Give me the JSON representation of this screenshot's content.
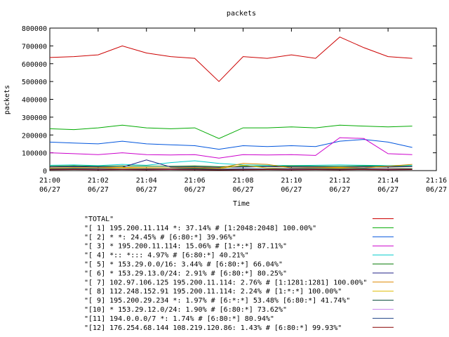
{
  "chart_data": {
    "type": "line",
    "title": "packets",
    "xlabel": "Time",
    "ylabel": "packets",
    "ylim": [
      0,
      800000
    ],
    "yticks": [
      0,
      100000,
      200000,
      300000,
      400000,
      500000,
      600000,
      700000,
      800000
    ],
    "xticks": [
      {
        "time": "21:00",
        "date": "06/27"
      },
      {
        "time": "21:02",
        "date": "06/27"
      },
      {
        "time": "21:04",
        "date": "06/27"
      },
      {
        "time": "21:06",
        "date": "06/27"
      },
      {
        "time": "21:08",
        "date": "06/27"
      },
      {
        "time": "21:10",
        "date": "06/27"
      },
      {
        "time": "21:12",
        "date": "06/27"
      },
      {
        "time": "21:14",
        "date": "06/27"
      },
      {
        "time": "21:16",
        "date": "06/27"
      }
    ],
    "xlim": [
      "21:00",
      "21:16"
    ],
    "grid": false,
    "legend_position": "bottom",
    "x": [
      "21:00",
      "21:01",
      "21:02",
      "21:03",
      "21:04",
      "21:05",
      "21:06",
      "21:07",
      "21:08",
      "21:09",
      "21:10",
      "21:11",
      "21:12",
      "21:13",
      "21:14",
      "21:15"
    ],
    "series": [
      {
        "name": "\"TOTAL\"",
        "color": "#cc0000",
        "values": [
          635000,
          640000,
          650000,
          700000,
          660000,
          640000,
          630000,
          500000,
          640000,
          630000,
          650000,
          630000,
          750000,
          690000,
          640000,
          630000
        ]
      },
      {
        "name": "\"[ 1] 195.200.11.114 *: 37.14% # [1:2048:2048] 100.00%\"",
        "color": "#00aa00",
        "values": [
          235000,
          230000,
          240000,
          255000,
          240000,
          235000,
          240000,
          180000,
          240000,
          240000,
          245000,
          240000,
          255000,
          250000,
          245000,
          250000
        ]
      },
      {
        "name": "\"[ 2] * *: 24.45% # [6:80:*] 39.96%\"",
        "color": "#0055dd",
        "values": [
          160000,
          155000,
          150000,
          165000,
          150000,
          145000,
          140000,
          120000,
          140000,
          135000,
          140000,
          135000,
          165000,
          175000,
          160000,
          130000
        ]
      },
      {
        "name": "\"[ 3] * 195.200.11.114: 15.06% # [1:*:*] 87.11%\"",
        "color": "#cc00cc",
        "values": [
          100000,
          95000,
          90000,
          100000,
          90000,
          88000,
          90000,
          70000,
          90000,
          88000,
          90000,
          85000,
          185000,
          180000,
          95000,
          90000
        ]
      },
      {
        "name": "\"[ 4] *:: *::: 4.97% # [6:80:*] 40.21%\"",
        "color": "#00cccc",
        "values": [
          30000,
          32000,
          28000,
          35000,
          30000,
          45000,
          55000,
          40000,
          32000,
          30000,
          28000,
          30000,
          32000,
          30000,
          28000,
          30000
        ]
      },
      {
        "name": "\"[ 5] * 153.29.0.0/16: 3.44% # [6:80:*] 66.04%\"",
        "color": "#007700",
        "values": [
          25000,
          27000,
          24000,
          26000,
          25000,
          24000,
          26000,
          22000,
          25000,
          24000,
          26000,
          25000,
          24000,
          26000,
          25000,
          24000
        ]
      },
      {
        "name": "\"[ 6] * 153.29.13.0/24: 2.91% # [6:80:*] 80.25%\"",
        "color": "#222288",
        "values": [
          20000,
          22000,
          21000,
          19000,
          60000,
          20000,
          21000,
          18000,
          20000,
          22000,
          21000,
          20000,
          19000,
          21000,
          20000,
          22000
        ]
      },
      {
        "name": "\"[ 7] 102.97.106.125 195.200.11.114: 2.76% # [1:1281:1281] 100.00%\"",
        "color": "#dd8800",
        "values": [
          15000,
          17000,
          16000,
          18000,
          16000,
          15000,
          17000,
          14000,
          40000,
          35000,
          15000,
          16000,
          18000,
          15000,
          25000,
          35000
        ]
      },
      {
        "name": "\"[ 8] 112.248.152.91 195.200.11.114: 2.24% # [1:*:*] 100.00%\"",
        "color": "#ddbb00",
        "values": [
          12000,
          14000,
          13000,
          15000,
          12000,
          13000,
          14000,
          11000,
          30000,
          15000,
          12000,
          13000,
          14000,
          12000,
          13000,
          12000
        ]
      },
      {
        "name": "\"[ 9] 195.200.29.234 *: 1.97% # [6:*:*] 53.48% [6:80:*] 41.74%\"",
        "color": "#004433",
        "values": [
          10000,
          12000,
          11000,
          9000,
          10000,
          11000,
          12000,
          9000,
          11000,
          10000,
          12000,
          11000,
          10000,
          12000,
          11000,
          10000
        ]
      },
      {
        "name": "\"[10] * 153.29.12.0/24: 1.90% # [6:80:*] 73.62%\"",
        "color": "#cc88ee",
        "values": [
          8000,
          9000,
          10000,
          8000,
          9000,
          10000,
          8000,
          7000,
          9000,
          8000,
          10000,
          9000,
          8000,
          9000,
          10000,
          8000
        ]
      },
      {
        "name": "\"[11] 194.0.0.0/7 *: 1.74% # [6:80:*] 80.94%\"",
        "color": "#224488",
        "values": [
          7000,
          8000,
          9000,
          7000,
          8000,
          7000,
          9000,
          6000,
          8000,
          7000,
          8000,
          9000,
          7000,
          8000,
          7000,
          9000
        ]
      },
      {
        "name": "\"[12] 176.254.68.144 108.219.120.86: 1.43% # [6:80:*] 99.93%\"",
        "color": "#880000",
        "values": [
          5000,
          6000,
          5000,
          6000,
          5000,
          6000,
          5000,
          4000,
          5000,
          6000,
          5000,
          6000,
          5000,
          6000,
          5000,
          6000
        ]
      }
    ]
  }
}
